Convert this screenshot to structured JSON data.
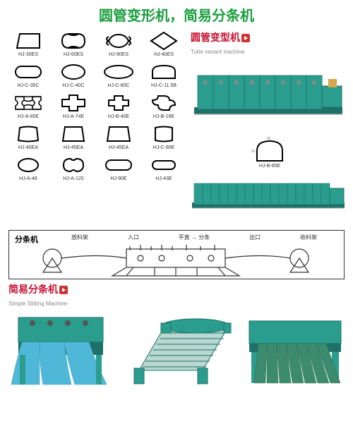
{
  "header": {
    "text": "圆管变形机，简易分条机",
    "color": "#1a9e3e"
  },
  "profiles": [
    {
      "id": "HJ-30ES",
      "svg": "trap1"
    },
    {
      "id": "HJ-60ES",
      "svg": "quat1"
    },
    {
      "id": "HJ-90ES",
      "svg": "quat2"
    },
    {
      "id": "HJ-40ES",
      "svg": "diamond"
    },
    {
      "id": "HJ-C-35C",
      "svg": "stadium1"
    },
    {
      "id": "HJ-C-40C",
      "svg": "ellipse1"
    },
    {
      "id": "HJ-C-80C",
      "svg": "ellipseW"
    },
    {
      "id": "HJ-C-11.5B",
      "svg": "dshape"
    },
    {
      "id": "HJ-A-85E",
      "svg": "ibeam"
    },
    {
      "id": "HJ-A-74E",
      "svg": "cross"
    },
    {
      "id": "HJ-B-40E",
      "svg": "plus"
    },
    {
      "id": "HJ-B-16E",
      "svg": "clover"
    },
    {
      "id": "HJ-40EA",
      "svg": "barrel1"
    },
    {
      "id": "HJ-45EA",
      "svg": "barrel2"
    },
    {
      "id": "HJ-45EA",
      "svg": "barrel3"
    },
    {
      "id": "HJ-C-90E",
      "svg": "barrel4"
    },
    {
      "id": "HJ-A-48",
      "svg": "ellipseS"
    },
    {
      "id": "HJ-A-120",
      "svg": "bean"
    },
    {
      "id": "HJ-90E",
      "svg": "stadium2"
    },
    {
      "id": "HJ-43E",
      "svg": "stadium3"
    }
  ],
  "tube_machine": {
    "title": "圆管变型机",
    "title_en": "Tube variant machine",
    "title_color": "#c8102e",
    "body_color": "#2a9d8f",
    "frame_color": "#1e7168"
  },
  "thin_machine": {
    "body_color": "#2a9d8f",
    "frame_color": "#1e7168"
  },
  "profile_right": {
    "id": "HJ-B-85E",
    "svg": "mushroom"
  },
  "diagram": {
    "title": "分条机",
    "labels": [
      "放料架",
      "入口",
      "平直 → 分条",
      "出口",
      "收料架"
    ]
  },
  "slitter": {
    "title": "简易分条机",
    "title_en": "Simple Slitting Machine",
    "title_color": "#c8102e",
    "machines": [
      {
        "color": "#2a9d8f",
        "sheet": "#4fb8d8"
      },
      {
        "color": "#2a9d8f",
        "sheet": "#2a9d8f"
      },
      {
        "color": "#2a9d8f",
        "sheet": "#3d8b6f"
      }
    ]
  }
}
